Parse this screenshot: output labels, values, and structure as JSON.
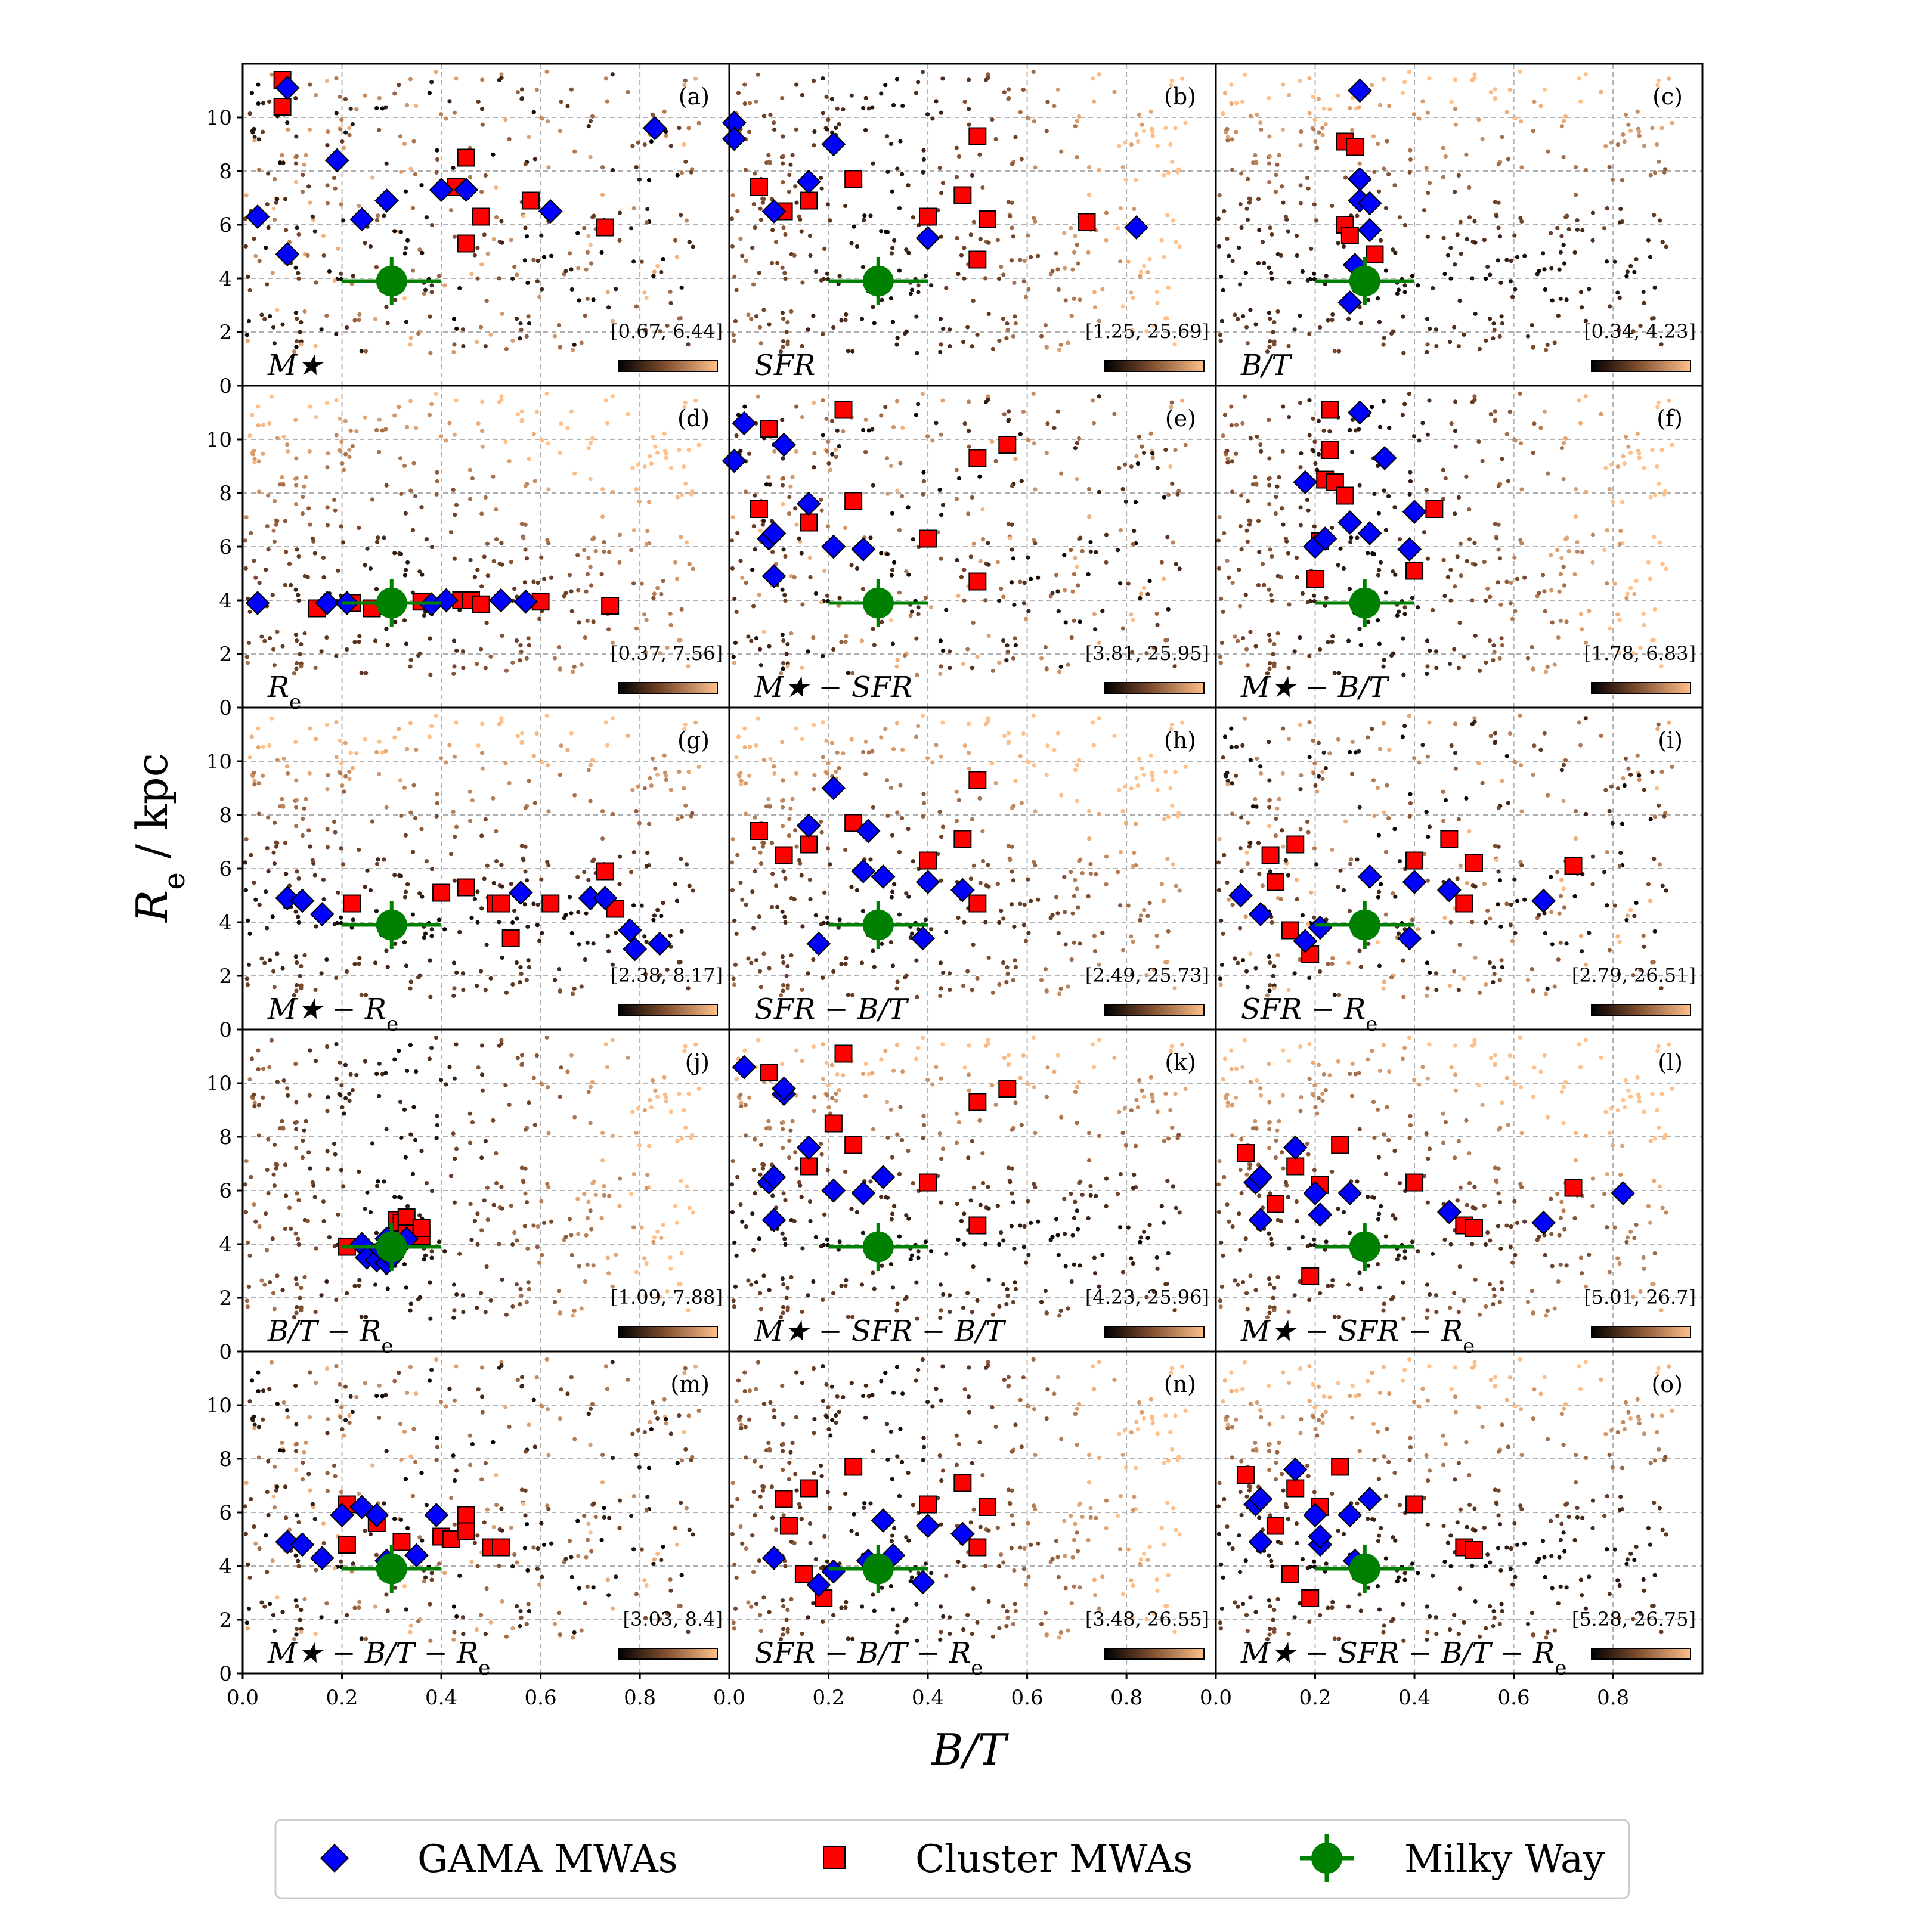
{
  "figure": {
    "xlabel": "B/T",
    "ylabel": "R_e / kpc",
    "colors": {
      "gama": "#0000ff",
      "cluster": "#ff0000",
      "milky_way": "#008000",
      "cmap_dark": "#000000",
      "cmap_light": "#ffc08a"
    }
  },
  "legend": {
    "gama": "GAMA MWAs",
    "cluster": "Cluster MWAs",
    "milky_way": "Milky Way"
  },
  "chart_data": {
    "type": "scatter",
    "grid": true,
    "xlim": [
      0,
      0.98
    ],
    "ylim": [
      0,
      12
    ],
    "xticks": [
      "0.0",
      "0.2",
      "0.4",
      "0.6",
      "0.8"
    ],
    "yticks": [
      "0",
      "2",
      "4",
      "6",
      "8",
      "10"
    ],
    "milky_way": {
      "x": 0.3,
      "y": 3.9,
      "xerr": 0.1,
      "yerr": 0.9
    },
    "panels": [
      {
        "letter": "(a)",
        "label": "M★",
        "range": "[0.67, 6.44]",
        "gama": [
          [
            0.03,
            6.3
          ],
          [
            0.09,
            4.9
          ],
          [
            0.09,
            11.1
          ],
          [
            0.19,
            8.4
          ],
          [
            0.24,
            6.2
          ],
          [
            0.29,
            6.9
          ],
          [
            0.4,
            7.3
          ],
          [
            0.45,
            7.3
          ],
          [
            0.62,
            6.5
          ],
          [
            0.83,
            9.6
          ]
        ],
        "cluster": [
          [
            0.08,
            11.4
          ],
          [
            0.08,
            10.4
          ],
          [
            0.43,
            7.4
          ],
          [
            0.45,
            8.5
          ],
          [
            0.45,
            5.3
          ],
          [
            0.48,
            6.3
          ],
          [
            0.58,
            6.9
          ],
          [
            0.73,
            5.9
          ]
        ]
      },
      {
        "letter": "(b)",
        "label": "SFR",
        "range": "[1.25, 25.69]",
        "gama": [
          [
            0.01,
            9.8
          ],
          [
            0.01,
            9.2
          ],
          [
            0.09,
            6.5
          ],
          [
            0.16,
            7.6
          ],
          [
            0.21,
            9.0
          ],
          [
            0.4,
            5.5
          ],
          [
            0.82,
            5.9
          ]
        ],
        "cluster": [
          [
            0.06,
            7.4
          ],
          [
            0.11,
            6.5
          ],
          [
            0.16,
            6.9
          ],
          [
            0.25,
            7.7
          ],
          [
            0.4,
            6.3
          ],
          [
            0.47,
            7.1
          ],
          [
            0.5,
            9.3
          ],
          [
            0.5,
            4.7
          ],
          [
            0.52,
            6.2
          ],
          [
            0.72,
            6.1
          ]
        ]
      },
      {
        "letter": "(c)",
        "label": "B/T",
        "range": "[0.34, 4.23]",
        "gama": [
          [
            0.29,
            11.0
          ],
          [
            0.29,
            7.7
          ],
          [
            0.29,
            6.9
          ],
          [
            0.31,
            6.8
          ],
          [
            0.31,
            5.8
          ],
          [
            0.28,
            4.5
          ],
          [
            0.27,
            3.1
          ]
        ],
        "cluster": [
          [
            0.26,
            9.1
          ],
          [
            0.28,
            8.9
          ],
          [
            0.26,
            6.0
          ],
          [
            0.27,
            5.6
          ],
          [
            0.32,
            4.9
          ]
        ]
      },
      {
        "letter": "(d)",
        "label": "Re",
        "range": "[0.37, 7.56]",
        "gama": [
          [
            0.03,
            3.9
          ],
          [
            0.17,
            3.9
          ],
          [
            0.21,
            3.9
          ],
          [
            0.38,
            3.85
          ],
          [
            0.41,
            4.0
          ],
          [
            0.52,
            4.0
          ],
          [
            0.57,
            3.95
          ]
        ],
        "cluster": [
          [
            0.15,
            3.7
          ],
          [
            0.22,
            3.9
          ],
          [
            0.26,
            3.7
          ],
          [
            0.36,
            3.95
          ],
          [
            0.44,
            4.0
          ],
          [
            0.46,
            4.0
          ],
          [
            0.48,
            3.85
          ],
          [
            0.6,
            3.95
          ],
          [
            0.74,
            3.8
          ]
        ]
      },
      {
        "letter": "(e)",
        "label": "M★ − SFR",
        "range": "[3.81, 25.95]",
        "gama": [
          [
            0.01,
            9.2
          ],
          [
            0.03,
            10.6
          ],
          [
            0.08,
            6.3
          ],
          [
            0.09,
            6.5
          ],
          [
            0.09,
            4.9
          ],
          [
            0.11,
            9.8
          ],
          [
            0.16,
            7.6
          ],
          [
            0.21,
            6.0
          ],
          [
            0.27,
            5.9
          ]
        ],
        "cluster": [
          [
            0.06,
            7.4
          ],
          [
            0.08,
            10.4
          ],
          [
            0.16,
            6.9
          ],
          [
            0.23,
            11.1
          ],
          [
            0.25,
            7.7
          ],
          [
            0.4,
            6.3
          ],
          [
            0.5,
            9.3
          ],
          [
            0.5,
            4.7
          ],
          [
            0.56,
            9.8
          ]
        ]
      },
      {
        "letter": "(f)",
        "label": "M★ − B/T",
        "range": "[1.78, 6.83]",
        "gama": [
          [
            0.18,
            8.4
          ],
          [
            0.2,
            6.0
          ],
          [
            0.22,
            6.3
          ],
          [
            0.27,
            6.9
          ],
          [
            0.29,
            11.0
          ],
          [
            0.31,
            6.5
          ],
          [
            0.34,
            9.3
          ],
          [
            0.39,
            5.9
          ],
          [
            0.4,
            7.3
          ]
        ],
        "cluster": [
          [
            0.2,
            4.8
          ],
          [
            0.21,
            6.2
          ],
          [
            0.22,
            8.5
          ],
          [
            0.23,
            11.1
          ],
          [
            0.23,
            9.6
          ],
          [
            0.24,
            8.4
          ],
          [
            0.26,
            7.9
          ],
          [
            0.4,
            5.1
          ],
          [
            0.44,
            7.4
          ]
        ]
      },
      {
        "letter": "(g)",
        "label": "M★ − Re",
        "range": "[2.38, 8.17]",
        "gama": [
          [
            0.09,
            4.9
          ],
          [
            0.12,
            4.8
          ],
          [
            0.16,
            4.3
          ],
          [
            0.56,
            5.1
          ],
          [
            0.7,
            4.9
          ],
          [
            0.73,
            4.9
          ],
          [
            0.78,
            3.7
          ],
          [
            0.79,
            3.0
          ],
          [
            0.84,
            3.2
          ]
        ],
        "cluster": [
          [
            0.22,
            4.7
          ],
          [
            0.4,
            5.1
          ],
          [
            0.45,
            5.3
          ],
          [
            0.51,
            4.7
          ],
          [
            0.52,
            4.7
          ],
          [
            0.54,
            3.4
          ],
          [
            0.62,
            4.7
          ],
          [
            0.73,
            5.9
          ],
          [
            0.75,
            4.5
          ]
        ]
      },
      {
        "letter": "(h)",
        "label": "SFR − B/T",
        "range": "[2.49, 25.73]",
        "gama": [
          [
            0.16,
            7.6
          ],
          [
            0.18,
            3.2
          ],
          [
            0.21,
            9.0
          ],
          [
            0.27,
            5.9
          ],
          [
            0.28,
            7.4
          ],
          [
            0.31,
            5.7
          ],
          [
            0.39,
            3.4
          ],
          [
            0.4,
            5.5
          ],
          [
            0.47,
            5.2
          ]
        ],
        "cluster": [
          [
            0.06,
            7.4
          ],
          [
            0.11,
            6.5
          ],
          [
            0.16,
            6.9
          ],
          [
            0.25,
            7.7
          ],
          [
            0.4,
            6.3
          ],
          [
            0.47,
            7.1
          ],
          [
            0.5,
            9.3
          ],
          [
            0.5,
            4.7
          ]
        ]
      },
      {
        "letter": "(i)",
        "label": "SFR − Re",
        "range": "[2.79, 26.51]",
        "gama": [
          [
            0.05,
            5.0
          ],
          [
            0.09,
            4.3
          ],
          [
            0.18,
            3.3
          ],
          [
            0.21,
            3.8
          ],
          [
            0.31,
            5.7
          ],
          [
            0.39,
            3.4
          ],
          [
            0.4,
            5.5
          ],
          [
            0.47,
            5.2
          ],
          [
            0.66,
            4.8
          ]
        ],
        "cluster": [
          [
            0.11,
            6.5
          ],
          [
            0.12,
            5.5
          ],
          [
            0.15,
            3.7
          ],
          [
            0.16,
            6.9
          ],
          [
            0.19,
            2.8
          ],
          [
            0.4,
            6.3
          ],
          [
            0.47,
            7.1
          ],
          [
            0.5,
            4.7
          ],
          [
            0.52,
            6.2
          ],
          [
            0.72,
            6.1
          ]
        ]
      },
      {
        "letter": "(j)",
        "label": "B/T − Re",
        "range": "[1.09, 7.88]",
        "gama": [
          [
            0.24,
            4.0
          ],
          [
            0.25,
            3.5
          ],
          [
            0.27,
            3.4
          ],
          [
            0.28,
            3.8
          ],
          [
            0.29,
            4.2
          ],
          [
            0.29,
            3.3
          ],
          [
            0.3,
            3.5
          ],
          [
            0.33,
            4.2
          ]
        ],
        "cluster": [
          [
            0.21,
            3.9
          ],
          [
            0.27,
            3.7
          ],
          [
            0.31,
            4.9
          ],
          [
            0.32,
            4.8
          ],
          [
            0.33,
            5.0
          ],
          [
            0.33,
            4.4
          ],
          [
            0.36,
            4.3
          ],
          [
            0.36,
            4.6
          ]
        ]
      },
      {
        "letter": "(k)",
        "label": "M★ − SFR − B/T",
        "range": "[4.23, 25.96]",
        "gama": [
          [
            0.03,
            10.6
          ],
          [
            0.08,
            6.3
          ],
          [
            0.09,
            6.5
          ],
          [
            0.09,
            4.9
          ],
          [
            0.11,
            9.6
          ],
          [
            0.11,
            9.8
          ],
          [
            0.16,
            7.6
          ],
          [
            0.21,
            6.0
          ],
          [
            0.27,
            5.9
          ],
          [
            0.31,
            6.5
          ]
        ],
        "cluster": [
          [
            0.08,
            10.4
          ],
          [
            0.16,
            6.9
          ],
          [
            0.21,
            8.5
          ],
          [
            0.23,
            11.1
          ],
          [
            0.25,
            7.7
          ],
          [
            0.4,
            6.3
          ],
          [
            0.5,
            9.3
          ],
          [
            0.5,
            4.7
          ],
          [
            0.56,
            9.8
          ]
        ]
      },
      {
        "letter": "(l)",
        "label": "M★ − SFR − Re",
        "range": "[5.01, 26.7]",
        "gama": [
          [
            0.08,
            6.3
          ],
          [
            0.09,
            6.5
          ],
          [
            0.09,
            4.9
          ],
          [
            0.16,
            7.6
          ],
          [
            0.2,
            5.9
          ],
          [
            0.21,
            5.1
          ],
          [
            0.27,
            5.9
          ],
          [
            0.47,
            5.2
          ],
          [
            0.66,
            4.8
          ],
          [
            0.82,
            5.9
          ]
        ],
        "cluster": [
          [
            0.06,
            7.4
          ],
          [
            0.12,
            5.5
          ],
          [
            0.16,
            6.9
          ],
          [
            0.19,
            2.8
          ],
          [
            0.21,
            6.2
          ],
          [
            0.25,
            7.7
          ],
          [
            0.4,
            6.3
          ],
          [
            0.5,
            4.7
          ],
          [
            0.52,
            4.6
          ],
          [
            0.72,
            6.1
          ]
        ]
      },
      {
        "letter": "(m)",
        "label": "M★ − B/T − Re",
        "range": "[3.03, 8.4]",
        "gama": [
          [
            0.09,
            4.9
          ],
          [
            0.12,
            4.8
          ],
          [
            0.16,
            4.3
          ],
          [
            0.2,
            5.9
          ],
          [
            0.24,
            6.2
          ],
          [
            0.27,
            5.9
          ],
          [
            0.29,
            4.2
          ],
          [
            0.35,
            4.4
          ],
          [
            0.39,
            5.9
          ]
        ],
        "cluster": [
          [
            0.21,
            6.3
          ],
          [
            0.21,
            4.8
          ],
          [
            0.27,
            5.6
          ],
          [
            0.32,
            4.9
          ],
          [
            0.4,
            5.1
          ],
          [
            0.42,
            5.0
          ],
          [
            0.45,
            5.9
          ],
          [
            0.45,
            5.3
          ],
          [
            0.5,
            4.7
          ],
          [
            0.52,
            4.7
          ]
        ]
      },
      {
        "letter": "(n)",
        "label": "SFR − B/T − Re",
        "range": "[3.48, 26.55]",
        "gama": [
          [
            0.09,
            4.3
          ],
          [
            0.18,
            3.3
          ],
          [
            0.21,
            3.8
          ],
          [
            0.28,
            4.2
          ],
          [
            0.31,
            5.7
          ],
          [
            0.33,
            4.4
          ],
          [
            0.39,
            3.4
          ],
          [
            0.4,
            5.5
          ],
          [
            0.47,
            5.2
          ]
        ],
        "cluster": [
          [
            0.11,
            6.5
          ],
          [
            0.12,
            5.5
          ],
          [
            0.15,
            3.7
          ],
          [
            0.16,
            6.9
          ],
          [
            0.19,
            2.8
          ],
          [
            0.25,
            7.7
          ],
          [
            0.4,
            6.3
          ],
          [
            0.47,
            7.1
          ],
          [
            0.5,
            4.7
          ],
          [
            0.52,
            6.2
          ]
        ]
      },
      {
        "letter": "(o)",
        "label": "M★ − SFR − B/T − Re",
        "range": "[5.28, 26.75]",
        "gama": [
          [
            0.08,
            6.3
          ],
          [
            0.09,
            6.5
          ],
          [
            0.09,
            4.9
          ],
          [
            0.16,
            7.6
          ],
          [
            0.2,
            5.9
          ],
          [
            0.21,
            4.8
          ],
          [
            0.21,
            5.1
          ],
          [
            0.27,
            5.9
          ],
          [
            0.28,
            4.2
          ],
          [
            0.31,
            6.5
          ]
        ],
        "cluster": [
          [
            0.06,
            7.4
          ],
          [
            0.12,
            5.5
          ],
          [
            0.15,
            3.7
          ],
          [
            0.16,
            6.9
          ],
          [
            0.19,
            2.8
          ],
          [
            0.21,
            6.2
          ],
          [
            0.25,
            7.7
          ],
          [
            0.4,
            6.3
          ],
          [
            0.5,
            4.7
          ],
          [
            0.52,
            4.6
          ]
        ]
      }
    ]
  }
}
